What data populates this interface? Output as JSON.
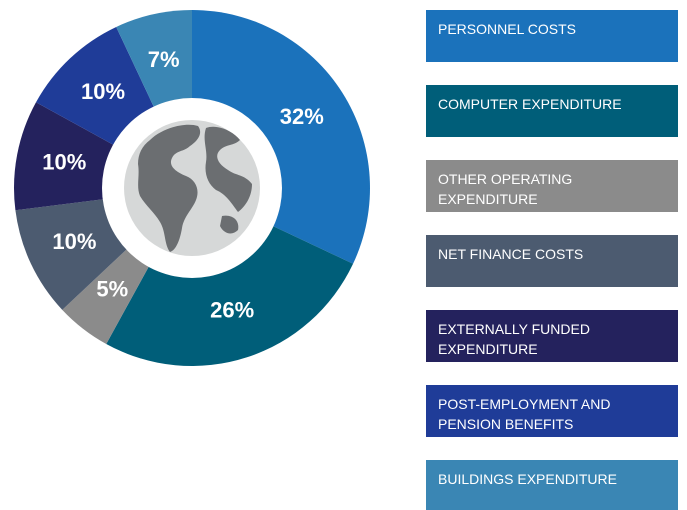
{
  "chart_data": {
    "type": "donut",
    "categories": [
      "PERSONNEL COSTS",
      "COMPUTER EXPENDITURE",
      "OTHER OPERATING EXPENDITURE",
      "NET FINANCE COSTS",
      "EXTERNALLY FUNDED EXPENDITURE",
      "POST-EMPLOYMENT AND PENSION BENEFITS",
      "BUILDINGS EXPENDITURE"
    ],
    "values": [
      32,
      26,
      5,
      10,
      10,
      10,
      7
    ],
    "value_labels": [
      "32%",
      "26%",
      "5%",
      "10%",
      "10%",
      "10%",
      "7%"
    ],
    "colors": [
      "#1b72bb",
      "#005e79",
      "#8b8b8b",
      "#4c5b70",
      "#24225d",
      "#1f3c98",
      "#3a86b4"
    ]
  }
}
